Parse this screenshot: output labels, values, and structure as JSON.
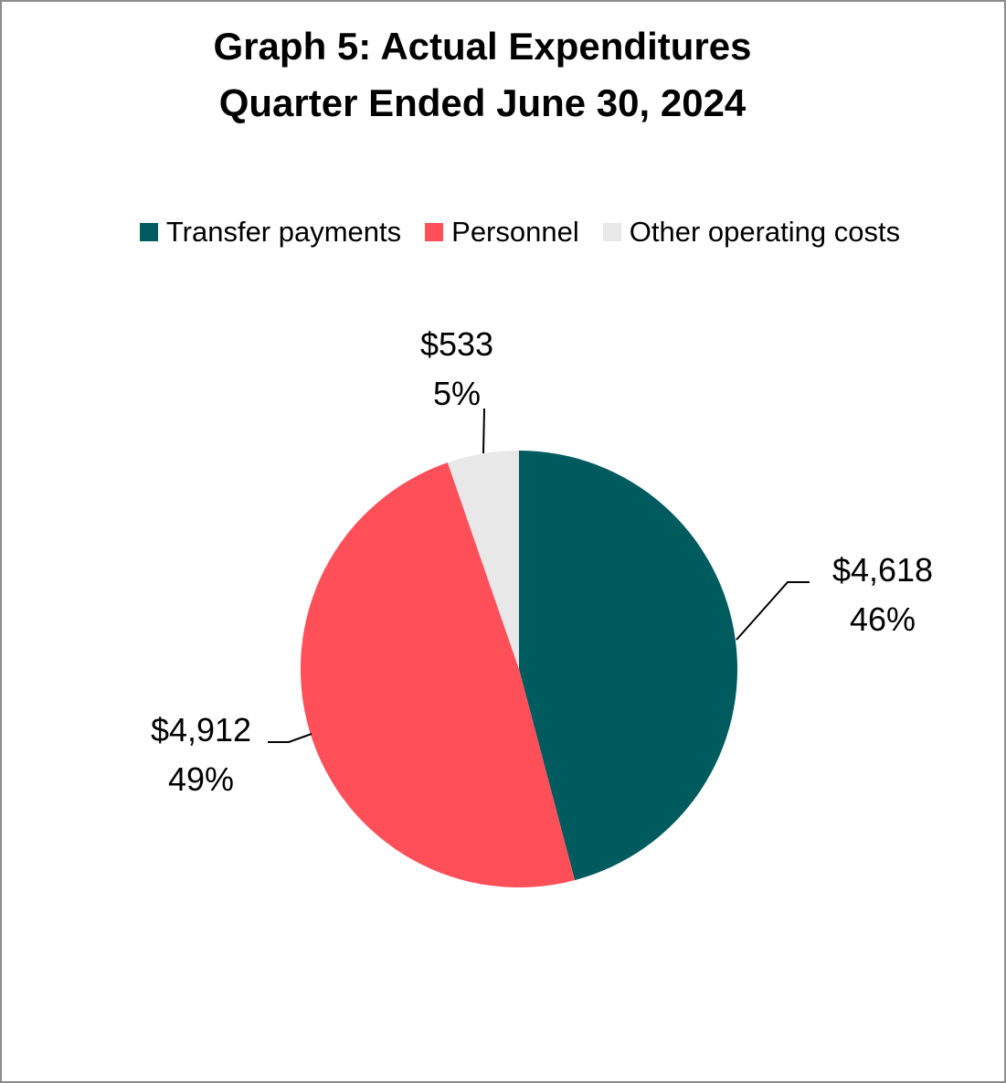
{
  "title": {
    "line1": "Graph 5: Actual Expenditures",
    "line2": "Quarter Ended June 30, 2024"
  },
  "chart_data": {
    "type": "pie",
    "title": "Graph 5: Actual Expenditures Quarter Ended June 30, 2024",
    "legend_position": "top",
    "slices": [
      {
        "label": "Transfer payments",
        "value": 4618,
        "value_label": "$4,618",
        "percent_label": "46%",
        "color": "#005b5f"
      },
      {
        "label": "Personnel",
        "value": 4912,
        "value_label": "$4,912",
        "percent_label": "49%",
        "color": "#ff505a"
      },
      {
        "label": "Other operating costs",
        "value": 533,
        "value_label": "$533",
        "percent_label": "5%",
        "color": "#e8e8e8"
      }
    ]
  }
}
